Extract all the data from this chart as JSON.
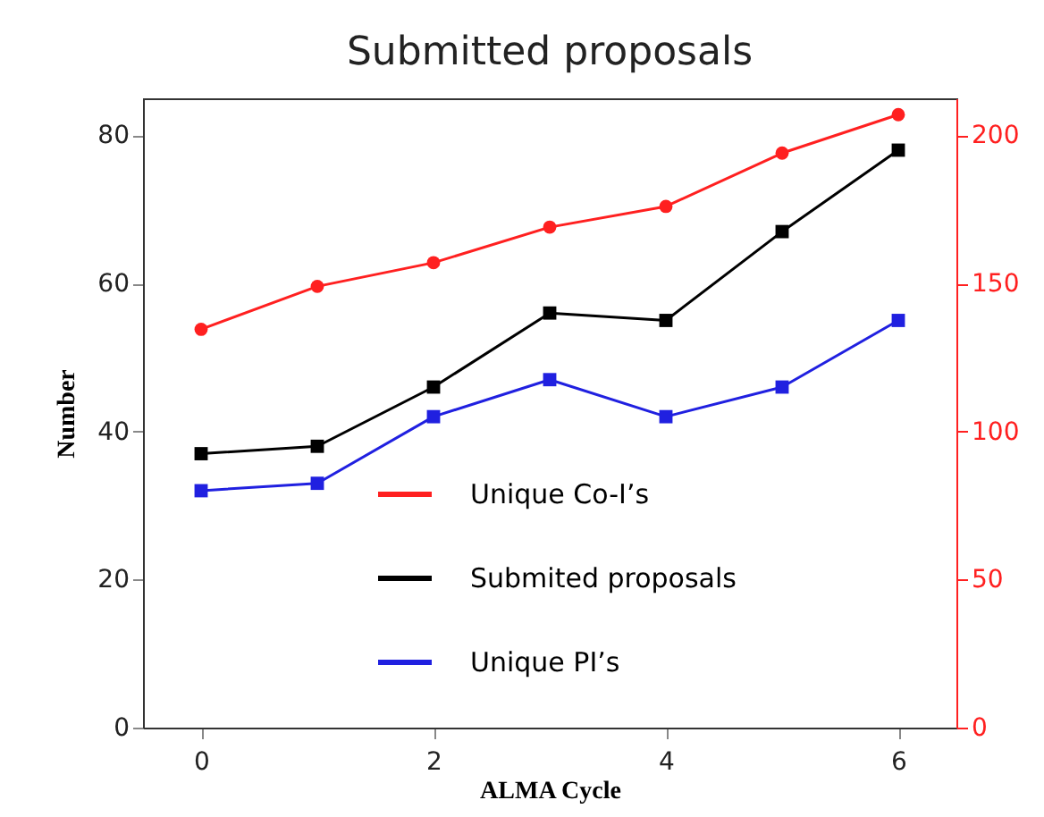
{
  "chart_data": {
    "type": "line",
    "title": "Submitted proposals",
    "xlabel": "ALMA Cycle",
    "ylabel": "Number",
    "x": [
      0,
      1,
      2,
      3,
      4,
      5,
      6
    ],
    "xlim": [
      -0.5,
      6.5
    ],
    "xticks": [
      0,
      2,
      4,
      6
    ],
    "ylim": [
      0,
      85
    ],
    "yticks": [
      0,
      20,
      40,
      60,
      80
    ],
    "y2lim": [
      0,
      212.5
    ],
    "y2ticks": [
      0,
      50,
      100,
      150,
      200
    ],
    "legend": "bottom right",
    "grid": false,
    "line_style": "solid",
    "series": [
      {
        "name": "Unique Co-I’s",
        "color": "#ff2020",
        "axis": "y2",
        "marker": "circle",
        "values": [
          134.5,
          149,
          157,
          169,
          176,
          194,
          207
        ]
      },
      {
        "name": "Submited proposals",
        "color": "#000000",
        "marker": "square",
        "values": [
          37,
          38,
          46,
          56,
          55,
          67,
          78
        ]
      },
      {
        "name": "Unique PI’s",
        "color": "#2020e0",
        "marker": "square",
        "values": [
          32,
          33,
          42,
          47,
          42,
          46,
          55
        ]
      }
    ]
  }
}
